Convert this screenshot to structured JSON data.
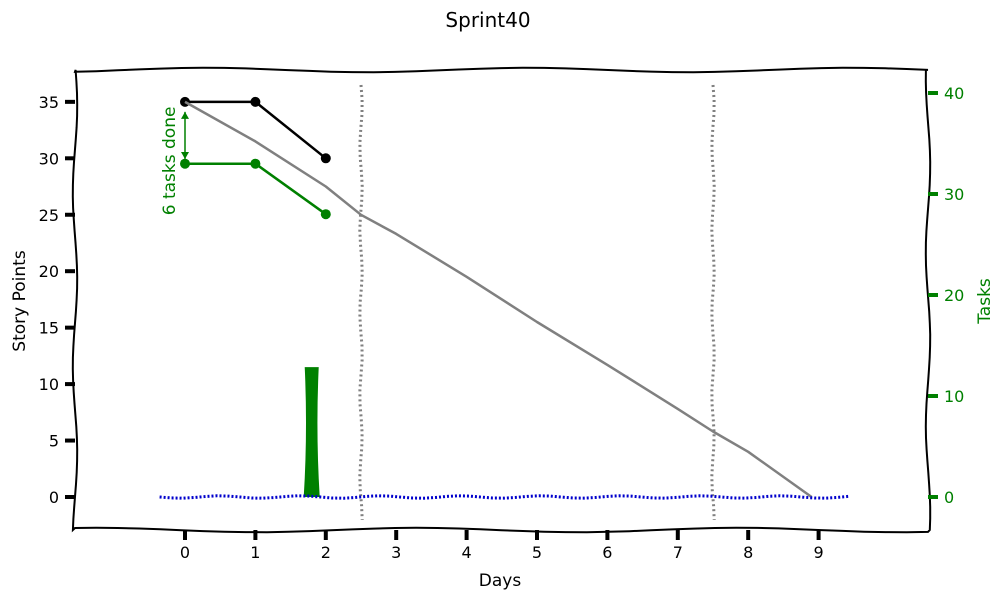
{
  "chart_data": {
    "type": "line",
    "title": "Sprint40",
    "xlabel": "Days",
    "ylabel": "Story Points",
    "y2label": "Tasks",
    "xlim": [
      -1,
      10
    ],
    "ylim": [
      -2.5,
      38
    ],
    "y2lim": [
      -3.5,
      42
    ],
    "x_ticks": [
      0,
      1,
      2,
      3,
      4,
      5,
      6,
      7,
      8,
      9
    ],
    "y_ticks": [
      0,
      5,
      10,
      15,
      20,
      25,
      30,
      35
    ],
    "y2_ticks": [
      0,
      10,
      20,
      30,
      40
    ],
    "grid": false,
    "colors": {
      "story_points": "#000000",
      "tasks": "#008000",
      "ideal": "#808080",
      "baseline": "#0000cc",
      "boundary": "#808080",
      "bar": "#008000"
    },
    "series": [
      {
        "axis": "left",
        "color": "#000000",
        "x": [
          0,
          1,
          2
        ],
        "y": [
          35,
          35,
          30
        ]
      },
      {
        "axis": "right",
        "color": "#008000",
        "x": [
          0,
          1,
          2
        ],
        "y": [
          33,
          33,
          28
        ]
      },
      {
        "axis": "left",
        "color": "#808080",
        "style": "ideal",
        "x": [
          0,
          1,
          2,
          2.5,
          3,
          4,
          5,
          6,
          7,
          7.5,
          8,
          8.9
        ],
        "y": [
          35,
          31.5,
          27.5,
          25,
          23.3,
          19.5,
          15.5,
          11.7,
          7.8,
          5.8,
          4,
          0
        ]
      },
      {
        "axis": "left",
        "color": "#0000cc",
        "style": "dotted",
        "x": [
          -1,
          10
        ],
        "y": [
          0,
          0
        ]
      }
    ],
    "vertical_lines": [
      2.5,
      7.5
    ],
    "bar": {
      "axis": "left",
      "x": 1.8,
      "value": 11.5,
      "color": "#008000"
    },
    "annotation": {
      "text": "6 tasks done",
      "x": 0,
      "y_top": 35,
      "y_bottom": 29.5,
      "color": "#008000"
    }
  }
}
